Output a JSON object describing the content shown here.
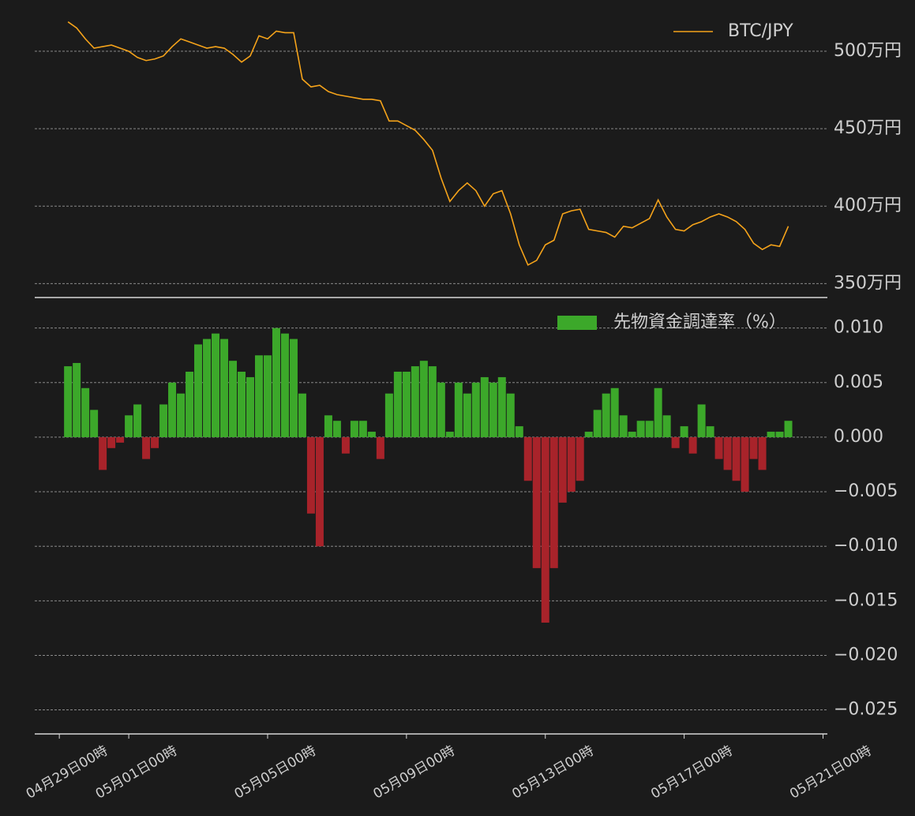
{
  "chart_data": [
    {
      "type": "line",
      "ylim": [
        341,
        528
      ],
      "xlim": [
        "04月28日07時",
        "05月21日03時"
      ],
      "yticks": [
        {
          "value": 350,
          "label": "350万円"
        },
        {
          "value": 400,
          "label": "400万円"
        },
        {
          "value": 450,
          "label": "450万円"
        },
        {
          "value": 500,
          "label": "500万円"
        }
      ],
      "grid": true,
      "legend": "upper right",
      "x": [
        "04月29日06時",
        "04月29日12時",
        "04月29日18時",
        "04月30日00時",
        "04月30日06時",
        "04月30日12時",
        "04月30日18時",
        "05月01日00時",
        "05月01日06時",
        "05月01日12時",
        "05月01日18時",
        "05月02日00時",
        "05月02日06時",
        "05月02日12時",
        "05月02日18時",
        "05月03日00時",
        "05月03日06時",
        "05月03日12時",
        "05月03日18時",
        "05月04日00時",
        "05月04日06時",
        "05月04日12時",
        "05月04日18時",
        "05月05日00時",
        "05月05日06時",
        "05月05日12時",
        "05月05日18時",
        "05月06日00時",
        "05月06日06時",
        "05月06日12時",
        "05月06日18時",
        "05月07日00時",
        "05月07日06時",
        "05月07日12時",
        "05月07日18時",
        "05月08日00時",
        "05月08日06時",
        "05月08日12時",
        "05月08日18時",
        "05月09日00時",
        "05月09日06時",
        "05月09日12時",
        "05月09日18時",
        "05月10日00時",
        "05月10日06時",
        "05月10日12時",
        "05月10日18時",
        "05月11日00時",
        "05月11日06時",
        "05月11日12時",
        "05月11日18時",
        "05月12日00時",
        "05月12日06時",
        "05月12日12時",
        "05月12日18時",
        "05月13日00時",
        "05月13日06時",
        "05月13日12時",
        "05月13日18時",
        "05月14日00時",
        "05月14日06時",
        "05月14日12時",
        "05月14日18時",
        "05月15日00時",
        "05月15日06時",
        "05月15日12時",
        "05月15日18時",
        "05月16日00時",
        "05月16日06時",
        "05月16日12時",
        "05月16日18時",
        "05月17日00時",
        "05月17日06時",
        "05月17日12時",
        "05月17日18時",
        "05月18日00時",
        "05月18日06時",
        "05月18日12時",
        "05月18日18時",
        "05月19日00時",
        "05月19日06時",
        "05月19日12時",
        "05月19日18時",
        "05月20日00時"
      ],
      "series": [
        {
          "name": "BTC/JPY",
          "color": "#f5a31a",
          "values": [
            519,
            515,
            508,
            502,
            503,
            504,
            502,
            500,
            496,
            494,
            495,
            497,
            503,
            508,
            506,
            504,
            502,
            503,
            502,
            498,
            493,
            497,
            510,
            508,
            513,
            512,
            512,
            482,
            477,
            478,
            474,
            472,
            471,
            470,
            469,
            469,
            468,
            455,
            455,
            452,
            449,
            443,
            436,
            418,
            403,
            410,
            415,
            410,
            400,
            408,
            410,
            395,
            375,
            362,
            365,
            375,
            378,
            395,
            397,
            398,
            385,
            384,
            383,
            380,
            387,
            386,
            389,
            392,
            404,
            393,
            385,
            384,
            388,
            390,
            393,
            395,
            393,
            390,
            385,
            376,
            372,
            375,
            374,
            387
          ]
        }
      ]
    },
    {
      "type": "bar",
      "ylim": [
        -0.0272,
        0.0128
      ],
      "xlim": [
        "04月28日07時",
        "05月21日03時"
      ],
      "yticks": [
        {
          "value": -0.025,
          "label": "−0.025"
        },
        {
          "value": -0.02,
          "label": "−0.020"
        },
        {
          "value": -0.015,
          "label": "−0.015"
        },
        {
          "value": -0.01,
          "label": "−0.010"
        },
        {
          "value": -0.005,
          "label": "−0.005"
        },
        {
          "value": 0,
          "label": "0.000"
        },
        {
          "value": 0.005,
          "label": "0.005"
        },
        {
          "value": 0.01,
          "label": "0.010"
        }
      ],
      "xticks": [
        "04月29日00時",
        "05月01日00時",
        "05月05日00時",
        "05月09日00時",
        "05月13日00時",
        "05月17日00時",
        "05月21日00時"
      ],
      "grid": true,
      "legend": "upper right",
      "x": [
        "04月29日06時",
        "04月29日12時",
        "04月29日18時",
        "04月30日00時",
        "04月30日06時",
        "04月30日12時",
        "04月30日18時",
        "05月01日00時",
        "05月01日06時",
        "05月01日12時",
        "05月01日18時",
        "05月02日00時",
        "05月02日06時",
        "05月02日12時",
        "05月02日18時",
        "05月03日00時",
        "05月03日06時",
        "05月03日12時",
        "05月03日18時",
        "05月04日00時",
        "05月04日06時",
        "05月04日12時",
        "05月04日18時",
        "05月05日00時",
        "05月05日06時",
        "05月05日12時",
        "05月05日18時",
        "05月06日00時",
        "05月06日06時",
        "05月06日12時",
        "05月06日18時",
        "05月07日00時",
        "05月07日06時",
        "05月07日12時",
        "05月07日18時",
        "05月08日00時",
        "05月08日06時",
        "05月08日12時",
        "05月08日18時",
        "05月09日00時",
        "05月09日06時",
        "05月09日12時",
        "05月09日18時",
        "05月10日00時",
        "05月10日06時",
        "05月10日12時",
        "05月10日18時",
        "05月11日00時",
        "05月11日06時",
        "05月11日12時",
        "05月11日18時",
        "05月12日00時",
        "05月12日06時",
        "05月12日12時",
        "05月12日18時",
        "05月13日00時",
        "05月13日06時",
        "05月13日12時",
        "05月13日18時",
        "05月14日00時",
        "05月14日06時",
        "05月14日12時",
        "05月14日18時",
        "05月15日00時",
        "05月15日06時",
        "05月15日12時",
        "05月15日18時",
        "05月16日00時",
        "05月16日06時",
        "05月16日12時",
        "05月16日18時",
        "05月17日00時",
        "05月17日06時",
        "05月17日12時",
        "05月17日18時",
        "05月18日00時",
        "05月18日06時",
        "05月18日12時",
        "05月18日18時",
        "05月19日00時",
        "05月19日06時",
        "05月19日12時",
        "05月19日18時",
        "05月20日00時"
      ],
      "series": [
        {
          "name": "先物資金調達率（%）",
          "color": "#3ca82a",
          "negative_color": "#a8232a",
          "values": [
            0.0065,
            0.0068,
            0.0045,
            0.0025,
            -0.003,
            -0.001,
            -0.0005,
            0.002,
            0.003,
            -0.002,
            -0.001,
            0.003,
            0.005,
            0.004,
            0.006,
            0.0085,
            0.009,
            0.0095,
            0.009,
            0.007,
            0.006,
            0.0055,
            0.0075,
            0.0075,
            0.01,
            0.0095,
            0.009,
            0.004,
            -0.007,
            -0.01,
            0.002,
            0.0015,
            -0.0015,
            0.0015,
            0.0015,
            0.0005,
            -0.002,
            0.004,
            0.006,
            0.006,
            0.0065,
            0.007,
            0.0065,
            0.005,
            0.0005,
            0.005,
            0.004,
            0.005,
            0.0055,
            0.005,
            0.0055,
            0.004,
            0.001,
            -0.004,
            -0.012,
            -0.017,
            -0.012,
            -0.006,
            -0.005,
            -0.004,
            0.0005,
            0.0025,
            0.004,
            0.0045,
            0.002,
            0.0005,
            0.0015,
            0.0015,
            0.0045,
            0.002,
            -0.001,
            0.001,
            -0.0015,
            0.003,
            0.001,
            -0.002,
            -0.003,
            -0.004,
            -0.005,
            -0.002,
            -0.003,
            0.0005,
            0.0005,
            0.0015
          ]
        }
      ]
    }
  ]
}
